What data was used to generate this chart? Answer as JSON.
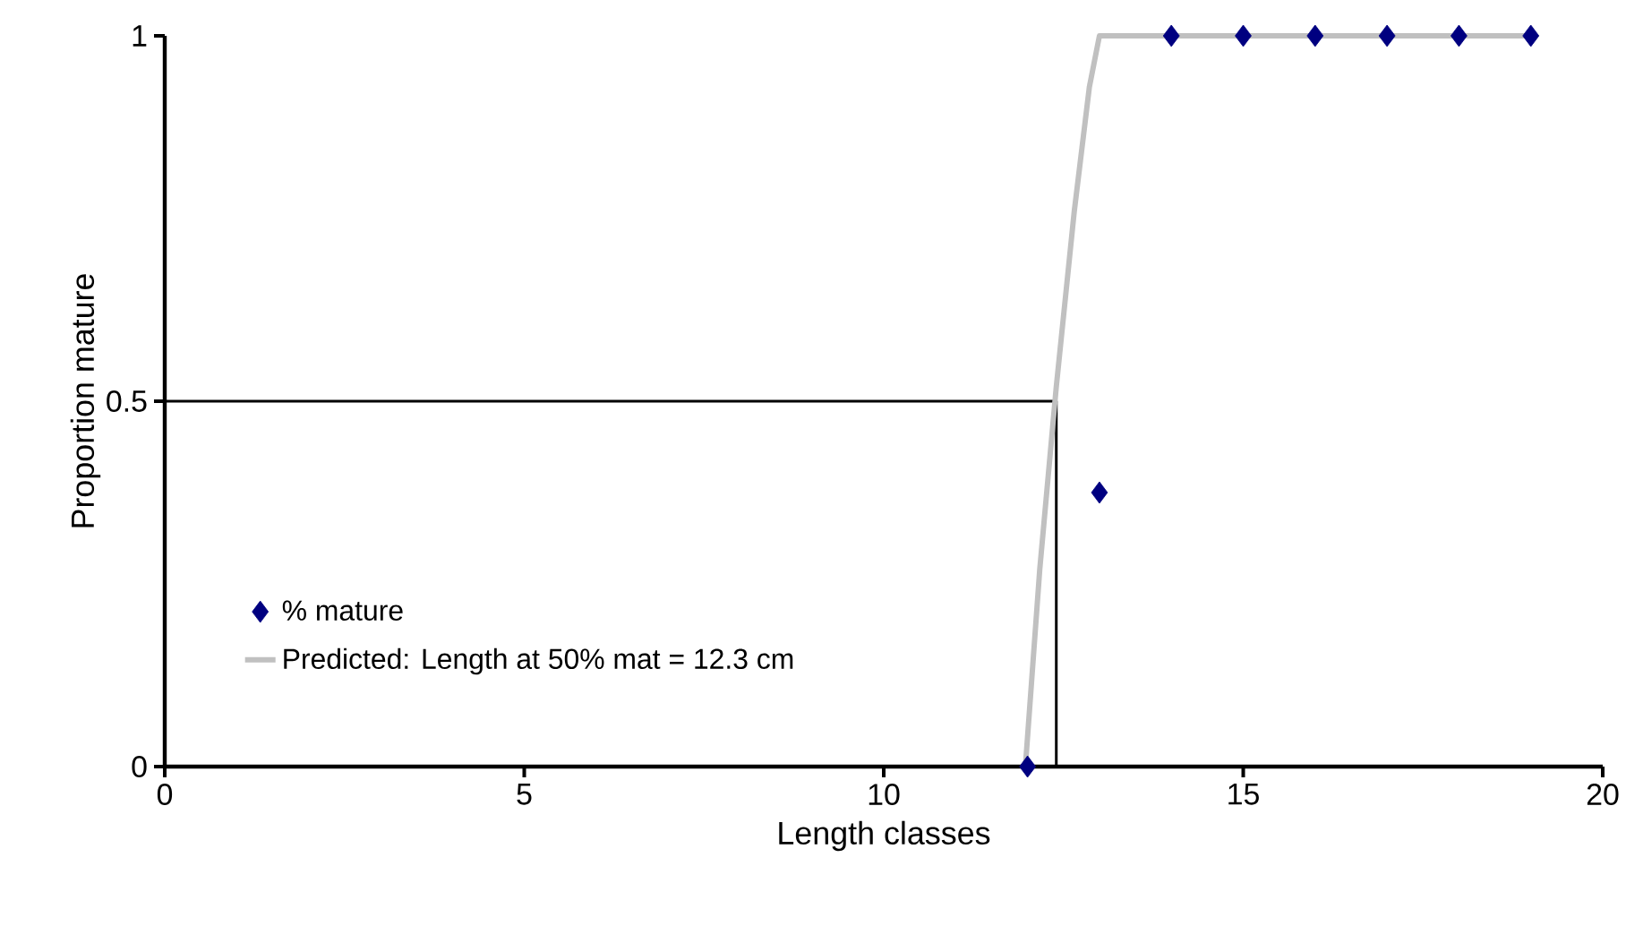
{
  "chart_data": {
    "type": "scatter",
    "xlabel": "Length classes",
    "ylabel": "Proportion mature",
    "xlim": [
      0,
      20
    ],
    "ylim": [
      0,
      1
    ],
    "xticks": [
      0,
      5,
      10,
      15,
      20
    ],
    "yticks": [
      0,
      0.5,
      1
    ],
    "grid": false,
    "legend": "bottom left",
    "series": [
      {
        "type": "line",
        "color": "#000000",
        "marker": "none",
        "line_style": "solid",
        "x": [
          0,
          12.4,
          12.4
        ],
        "values": [
          0.5,
          0.5,
          0
        ]
      },
      {
        "type": "line",
        "name": "Predicted: Length at 50% mat = 12.3 cm",
        "color": "#c0c0c0",
        "marker": "none",
        "line_style": "solid",
        "x": [
          11.97,
          12.17,
          12.4,
          12.65,
          12.86,
          13.0,
          14,
          15,
          16,
          17,
          18,
          19
        ],
        "values": [
          0,
          0.27,
          0.52,
          0.76,
          0.93,
          1,
          1,
          1,
          1,
          1,
          1,
          1
        ]
      },
      {
        "name": "% mature",
        "color": "#000080",
        "marker": "diamond",
        "x": [
          12,
          13,
          14,
          15,
          16,
          17,
          18,
          19
        ],
        "values": [
          0,
          0.375,
          1,
          1,
          1,
          1,
          1,
          1
        ]
      }
    ]
  }
}
